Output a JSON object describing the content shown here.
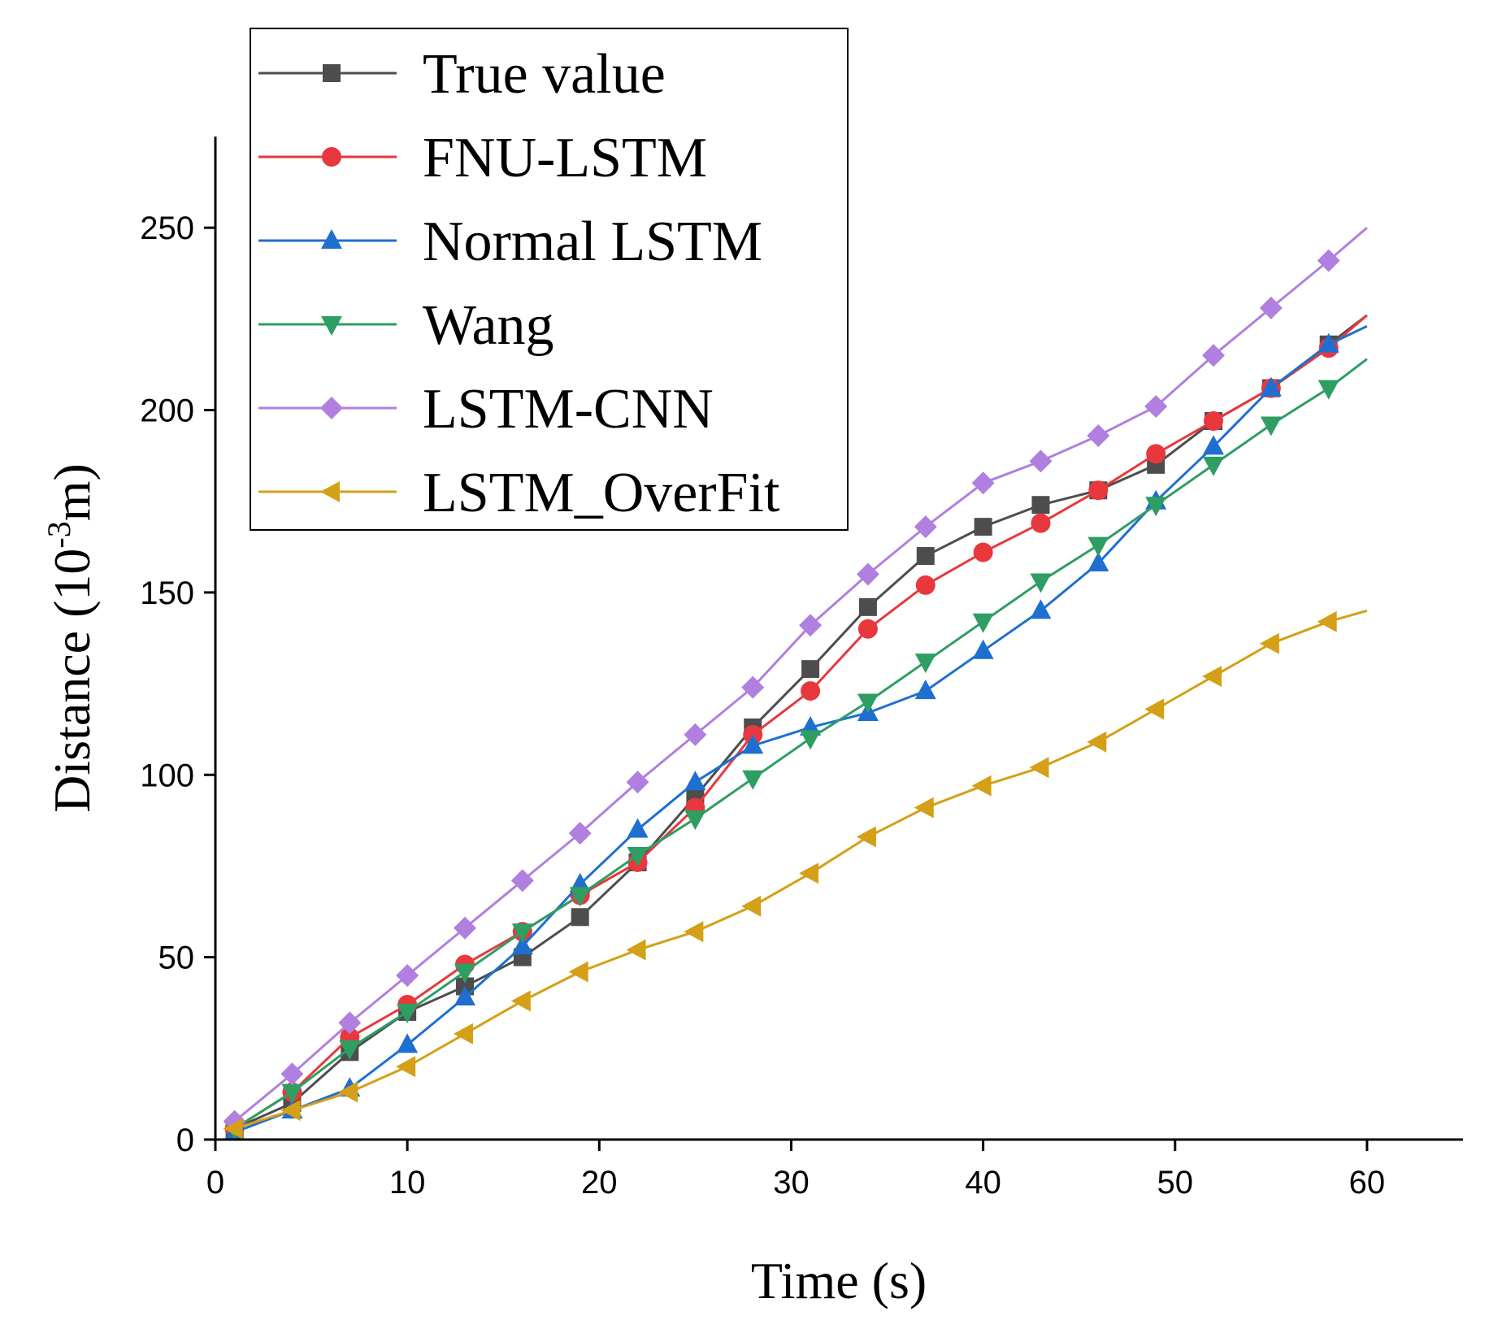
{
  "chart_data": {
    "type": "line",
    "title": "",
    "xlabel": "Time (s)",
    "ylabel_main": "Distance (10",
    "ylabel_sup": "-3",
    "ylabel_end": "m)",
    "xlim": [
      0,
      65
    ],
    "ylim": [
      0,
      275
    ],
    "xticks": [
      "0",
      "10",
      "20",
      "30",
      "40",
      "50",
      "60"
    ],
    "yticks": [
      "0",
      "50",
      "100",
      "150",
      "200",
      "250"
    ],
    "legend_position": "top-left",
    "x": [
      1,
      4,
      7,
      10,
      13,
      16,
      19,
      22,
      25,
      28,
      31,
      34,
      37,
      40,
      43,
      46,
      49,
      52,
      55,
      58
    ],
    "series": [
      {
        "name": "True value",
        "color": "#4d4d4d",
        "marker": "square",
        "values": [
          3,
          10,
          24,
          35,
          42,
          50,
          61,
          76,
          94,
          113,
          129,
          146,
          160,
          168,
          174,
          178,
          185,
          197,
          206,
          218
        ],
        "end": [
          60,
          226
        ]
      },
      {
        "name": "FNU-LSTM",
        "color": "#e8383d",
        "marker": "circle",
        "values": [
          3,
          13,
          28,
          37,
          48,
          57,
          67,
          76,
          91,
          111,
          123,
          140,
          152,
          161,
          169,
          178,
          188,
          197,
          206,
          217
        ],
        "end": [
          60,
          226
        ]
      },
      {
        "name": "Normal LSTM",
        "color": "#1f6fd1",
        "marker": "triangle-up",
        "values": [
          2,
          8,
          14,
          26,
          39,
          53,
          70,
          85,
          98,
          108,
          113,
          117,
          123,
          134,
          145,
          158,
          175,
          190,
          206,
          218
        ],
        "end": [
          60,
          223
        ]
      },
      {
        "name": "Wang",
        "color": "#2e9e63",
        "marker": "triangle-down",
        "values": [
          3,
          13,
          25,
          35,
          46,
          57,
          67,
          78,
          88,
          99,
          110,
          120,
          131,
          142,
          153,
          163,
          174,
          185,
          196,
          206
        ],
        "end": [
          60,
          214
        ]
      },
      {
        "name": "LSTM-CNN",
        "color": "#b07fe0",
        "marker": "diamond",
        "values": [
          5,
          18,
          32,
          45,
          58,
          71,
          84,
          98,
          111,
          124,
          141,
          155,
          168,
          180,
          186,
          193,
          201,
          215,
          228,
          241
        ],
        "end": [
          60,
          250
        ]
      },
      {
        "name": "LSTM_OverFit",
        "color": "#d4a017",
        "marker": "triangle-left",
        "values": [
          3,
          8,
          13,
          20,
          29,
          38,
          46,
          52,
          57,
          64,
          73,
          83,
          91,
          97,
          102,
          109,
          118,
          127,
          136,
          142
        ],
        "end": [
          60,
          145
        ]
      }
    ]
  }
}
